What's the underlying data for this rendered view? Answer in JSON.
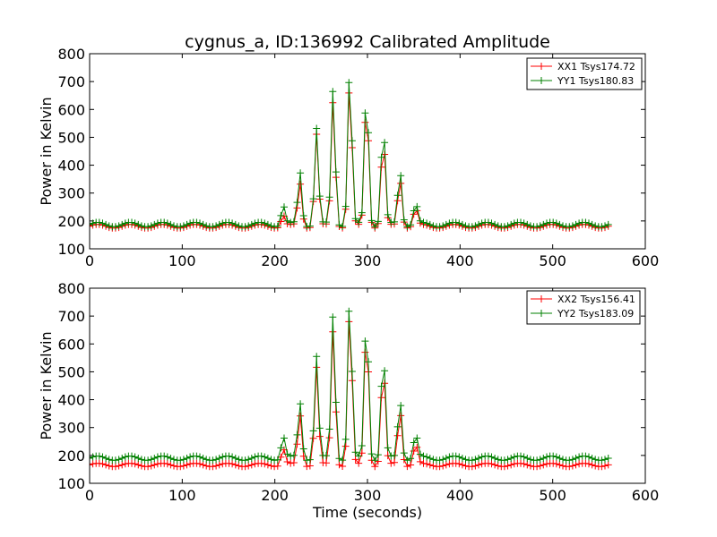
{
  "title": "cygnus_a, ID:136992 Calibrated Amplitude",
  "chart_data": [
    {
      "type": "line",
      "ylabel": "Power in Kelvin",
      "xlabel": "",
      "xlim": [
        0,
        600
      ],
      "ylim": [
        100,
        800
      ],
      "xticks": [
        0,
        100,
        200,
        300,
        400,
        500,
        600
      ],
      "yticks": [
        100,
        200,
        300,
        400,
        500,
        600,
        700,
        800
      ],
      "legend_position": "upper-right",
      "x": {
        "start": 0,
        "end": 560,
        "step": 3.5
      },
      "series": [
        {
          "name": "XX1 Tsys174.72",
          "color": "#ff0000",
          "baseline": 181,
          "ripple": 7,
          "spikes": [
            [
              209,
              40
            ],
            [
              227,
              155
            ],
            [
              245,
              330
            ],
            [
              263,
              455
            ],
            [
              281,
              530
            ],
            [
              299,
              470
            ],
            [
              317,
              320
            ],
            [
              335,
              175
            ],
            [
              352,
              65
            ]
          ]
        },
        {
          "name": "YY1 Tsys180.83",
          "color": "#008000",
          "baseline": 187,
          "ripple": 8,
          "spikes": [
            [
              209,
              70
            ],
            [
              227,
              190
            ],
            [
              245,
              345
            ],
            [
              263,
              490
            ],
            [
              281,
              565
            ],
            [
              299,
              505
            ],
            [
              317,
              365
            ],
            [
              335,
              200
            ],
            [
              352,
              75
            ]
          ]
        }
      ]
    },
    {
      "type": "line",
      "ylabel": "Power in Kelvin",
      "xlabel": "Time (seconds)",
      "xlim": [
        0,
        600
      ],
      "ylim": [
        100,
        800
      ],
      "xticks": [
        0,
        100,
        200,
        300,
        400,
        500,
        600
      ],
      "yticks": [
        100,
        200,
        300,
        400,
        500,
        600,
        700,
        800
      ],
      "legend_position": "upper-right",
      "x": {
        "start": 0,
        "end": 560,
        "step": 3.5
      },
      "series": [
        {
          "name": "XX2 Tsys156.41",
          "color": "#ff0000",
          "baseline": 166,
          "ripple": 6,
          "spikes": [
            [
              209,
              60
            ],
            [
              227,
              180
            ],
            [
              245,
              350
            ],
            [
              263,
              490
            ],
            [
              281,
              570
            ],
            [
              299,
              510
            ],
            [
              317,
              365
            ],
            [
              335,
              200
            ],
            [
              352,
              75
            ]
          ]
        },
        {
          "name": "YY2 Tsys183.09",
          "color": "#008000",
          "baseline": 190,
          "ripple": 8,
          "spikes": [
            [
              209,
              80
            ],
            [
              227,
              200
            ],
            [
              245,
              365
            ],
            [
              263,
              520
            ],
            [
              281,
              585
            ],
            [
              299,
              530
            ],
            [
              317,
              390
            ],
            [
              335,
              215
            ],
            [
              352,
              85
            ]
          ]
        }
      ]
    }
  ]
}
